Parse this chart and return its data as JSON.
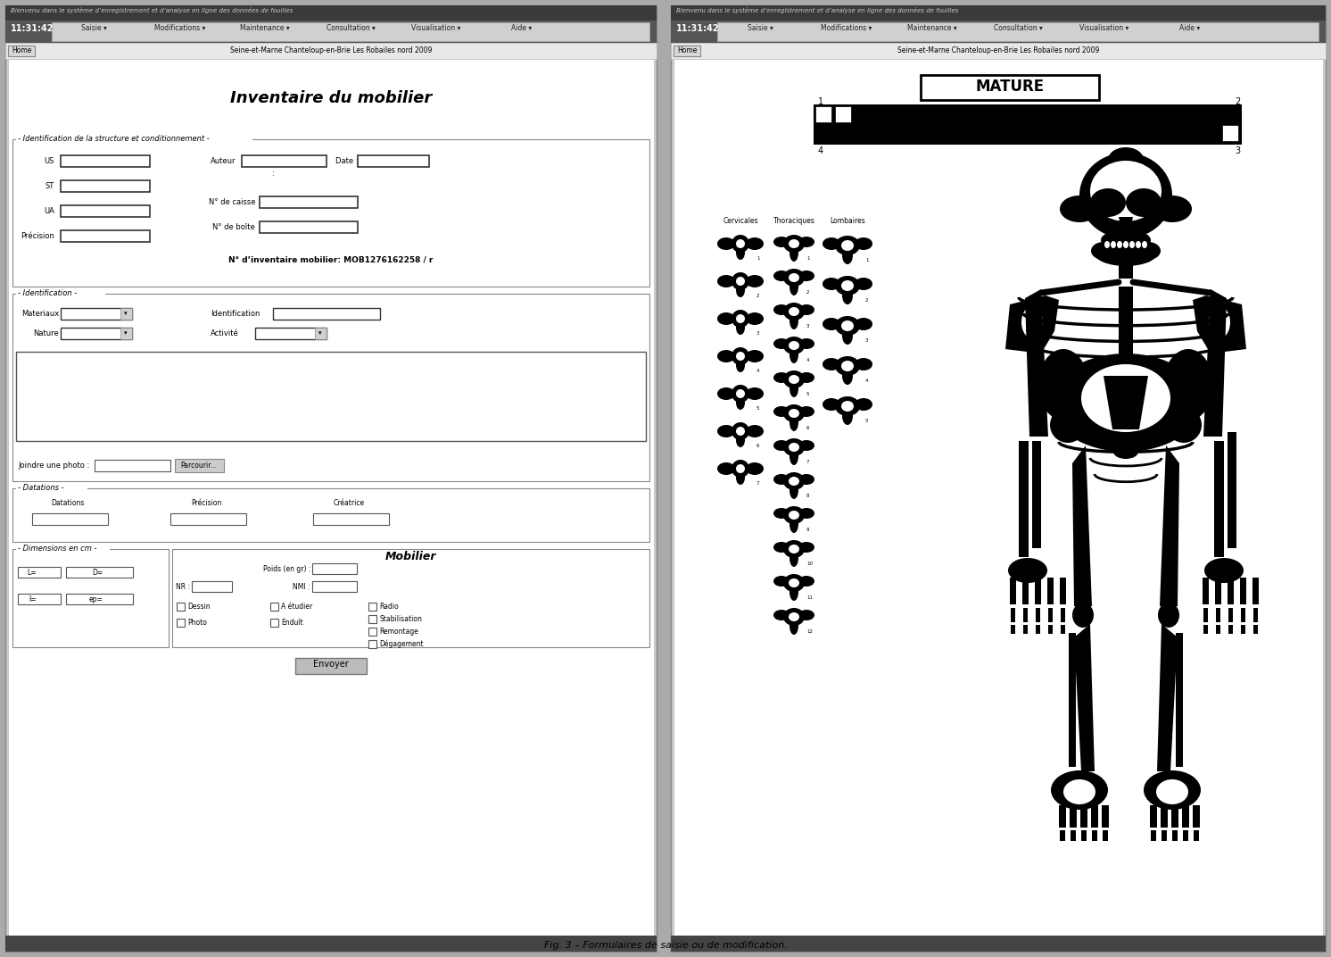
{
  "title": "Fig. 3 – Formulaires de saisie ou de modification.",
  "top_text": "Bienvenu dans le système d’enregistrement et d’analyse en ligne des données de fouilles",
  "time_text": "11:31:42",
  "nav_items": [
    "Saisie",
    "Modifications",
    "Maintenance",
    "Consultation",
    "Visualisation",
    "Aide"
  ],
  "home_text": "Home",
  "site_text": "Seine-et-Marne Chanteloup-en-Brie Les Robailes nord 2009",
  "mature_text": "MATURE",
  "section1_title": "Identification de la structure et conditionnement",
  "section2_title": "Identification",
  "section3_title": "Datations",
  "left_title": "Inventaire du mobilier",
  "inventaire_label": "N° d’inventaire mobilier: MOB1276162258 / r",
  "submit_text": "Envoyer",
  "parcourir_text": "Parcourir...",
  "joindre_text": "Joindre une photo :",
  "col_labels": [
    "Cervicales",
    "Thoraciques",
    "Lombaires"
  ]
}
